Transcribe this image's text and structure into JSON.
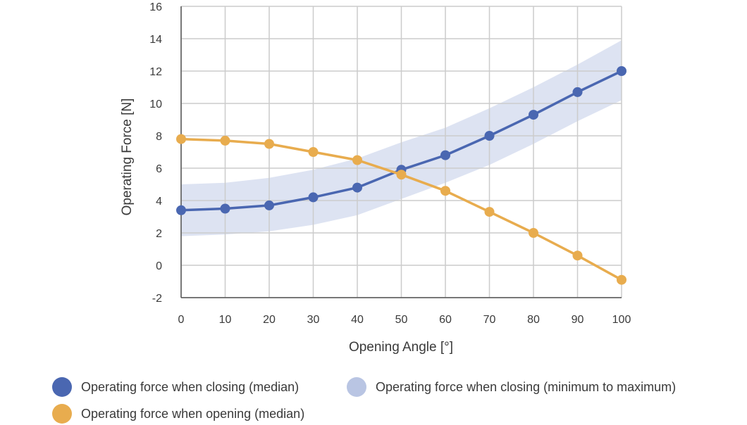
{
  "colors": {
    "closing": "#4a67b1",
    "opening": "#e8ac4e",
    "band": "#dde3f2",
    "band_legend": "#b9c5e3",
    "grid": "#cccccc",
    "axis": "#555555"
  },
  "legend": {
    "closing_median": "Operating force when closing (median)",
    "closing_range": "Operating force when closing (minimum to maximum)",
    "opening_median": "Operating force when opening (median)"
  },
  "chart_data": {
    "type": "line",
    "xlabel": "Opening Angle [°]",
    "ylabel": "Operating Force [N]",
    "xlim": [
      0,
      100
    ],
    "ylim": [
      -2,
      16
    ],
    "x_ticks": [
      0,
      10,
      20,
      30,
      40,
      50,
      60,
      70,
      80,
      90,
      100
    ],
    "y_ticks": [
      -2,
      0,
      2,
      4,
      6,
      8,
      10,
      12,
      14,
      16
    ],
    "grid": true,
    "x": [
      0,
      10,
      20,
      30,
      40,
      50,
      60,
      70,
      80,
      90,
      100
    ],
    "series": [
      {
        "name": "Operating force when closing (median)",
        "values": [
          3.4,
          3.5,
          3.7,
          4.2,
          4.8,
          5.9,
          6.8,
          8.0,
          9.3,
          10.7,
          12.0
        ]
      },
      {
        "name": "Operating force when opening (median)",
        "values": [
          7.8,
          7.7,
          7.5,
          7.0,
          6.5,
          5.6,
          4.6,
          3.3,
          2.0,
          0.6,
          -0.9
        ]
      }
    ],
    "band": {
      "name": "Operating force when closing (minimum to maximum)",
      "lower": [
        1.8,
        1.9,
        2.1,
        2.5,
        3.1,
        4.1,
        5.1,
        6.2,
        7.5,
        8.9,
        10.2
      ],
      "upper": [
        5.0,
        5.1,
        5.4,
        5.9,
        6.6,
        7.6,
        8.5,
        9.7,
        11.0,
        12.4,
        13.9
      ]
    }
  }
}
